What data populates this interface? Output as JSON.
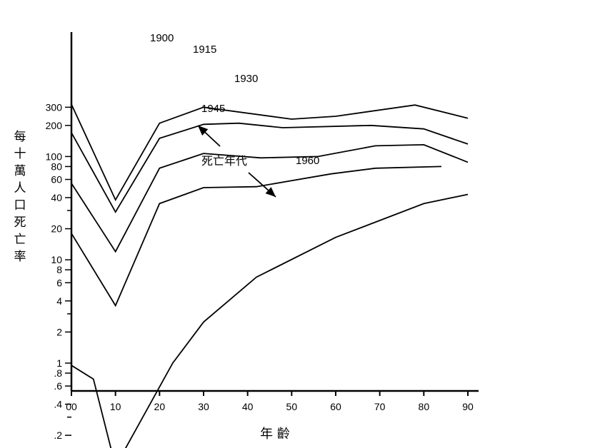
{
  "chart_data": {
    "type": "line",
    "title": "",
    "xlabel": "年 齡",
    "ylabel": "每十萬人口死亡率",
    "y_scale": "log",
    "xlim": [
      0,
      92
    ],
    "grid": false,
    "x_ticks": [
      "00",
      "10",
      "20",
      "30",
      "40",
      "50",
      "60",
      "70",
      "80",
      "90"
    ],
    "y_ticks": [
      {
        "v": 0.2,
        "label": ".2"
      },
      {
        "v": 0.4,
        "label": ".4"
      },
      {
        "v": 0.6,
        "label": ".6"
      },
      {
        "v": 0.8,
        "label": ".8"
      },
      {
        "v": 1,
        "label": "1"
      },
      {
        "v": 2,
        "label": "2"
      },
      {
        "v": 4,
        "label": "4"
      },
      {
        "v": 6,
        "label": "6"
      },
      {
        "v": 8,
        "label": "8"
      },
      {
        "v": 10,
        "label": "10"
      },
      {
        "v": 20,
        "label": "20"
      },
      {
        "v": 40,
        "label": "40"
      },
      {
        "v": 60,
        "label": "60"
      },
      {
        "v": 80,
        "label": "80"
      },
      {
        "v": 100,
        "label": "100"
      },
      {
        "v": 200,
        "label": "200"
      },
      {
        "v": 300,
        "label": "300"
      }
    ],
    "series": [
      {
        "name": "1900",
        "points": [
          [
            0,
            320
          ],
          [
            10,
            38
          ],
          [
            20,
            210
          ],
          [
            30,
            300
          ],
          [
            50,
            230
          ],
          [
            60,
            245
          ],
          [
            78,
            315
          ],
          [
            90,
            235
          ]
        ]
      },
      {
        "name": "1915",
        "points": [
          [
            0,
            170
          ],
          [
            10,
            29
          ],
          [
            20,
            150
          ],
          [
            30,
            205
          ],
          [
            38,
            210
          ],
          [
            48,
            190
          ],
          [
            68,
            200
          ],
          [
            80,
            185
          ],
          [
            90,
            132
          ]
        ]
      },
      {
        "name": "1930",
        "points": [
          [
            0,
            55
          ],
          [
            10,
            12
          ],
          [
            20,
            77
          ],
          [
            30,
            107
          ],
          [
            43,
            97
          ],
          [
            56,
            100
          ],
          [
            69,
            127
          ],
          [
            80,
            130
          ],
          [
            90,
            88
          ]
        ]
      },
      {
        "name": "1945",
        "points": [
          [
            0,
            18
          ],
          [
            10,
            3.6
          ],
          [
            20,
            35
          ],
          [
            30,
            50
          ],
          [
            42,
            51
          ],
          [
            59,
            68
          ],
          [
            69,
            77
          ],
          [
            84,
            80
          ]
        ]
      },
      {
        "name": "1960",
        "points": [
          [
            0,
            0.95
          ],
          [
            5,
            0.7
          ],
          [
            10,
            0.1
          ],
          [
            23,
            1
          ],
          [
            30,
            2.5
          ],
          [
            42,
            6.8
          ],
          [
            60,
            16.5
          ],
          [
            80,
            35
          ],
          [
            90,
            43
          ]
        ]
      }
    ],
    "annotation": "死亡年代"
  }
}
